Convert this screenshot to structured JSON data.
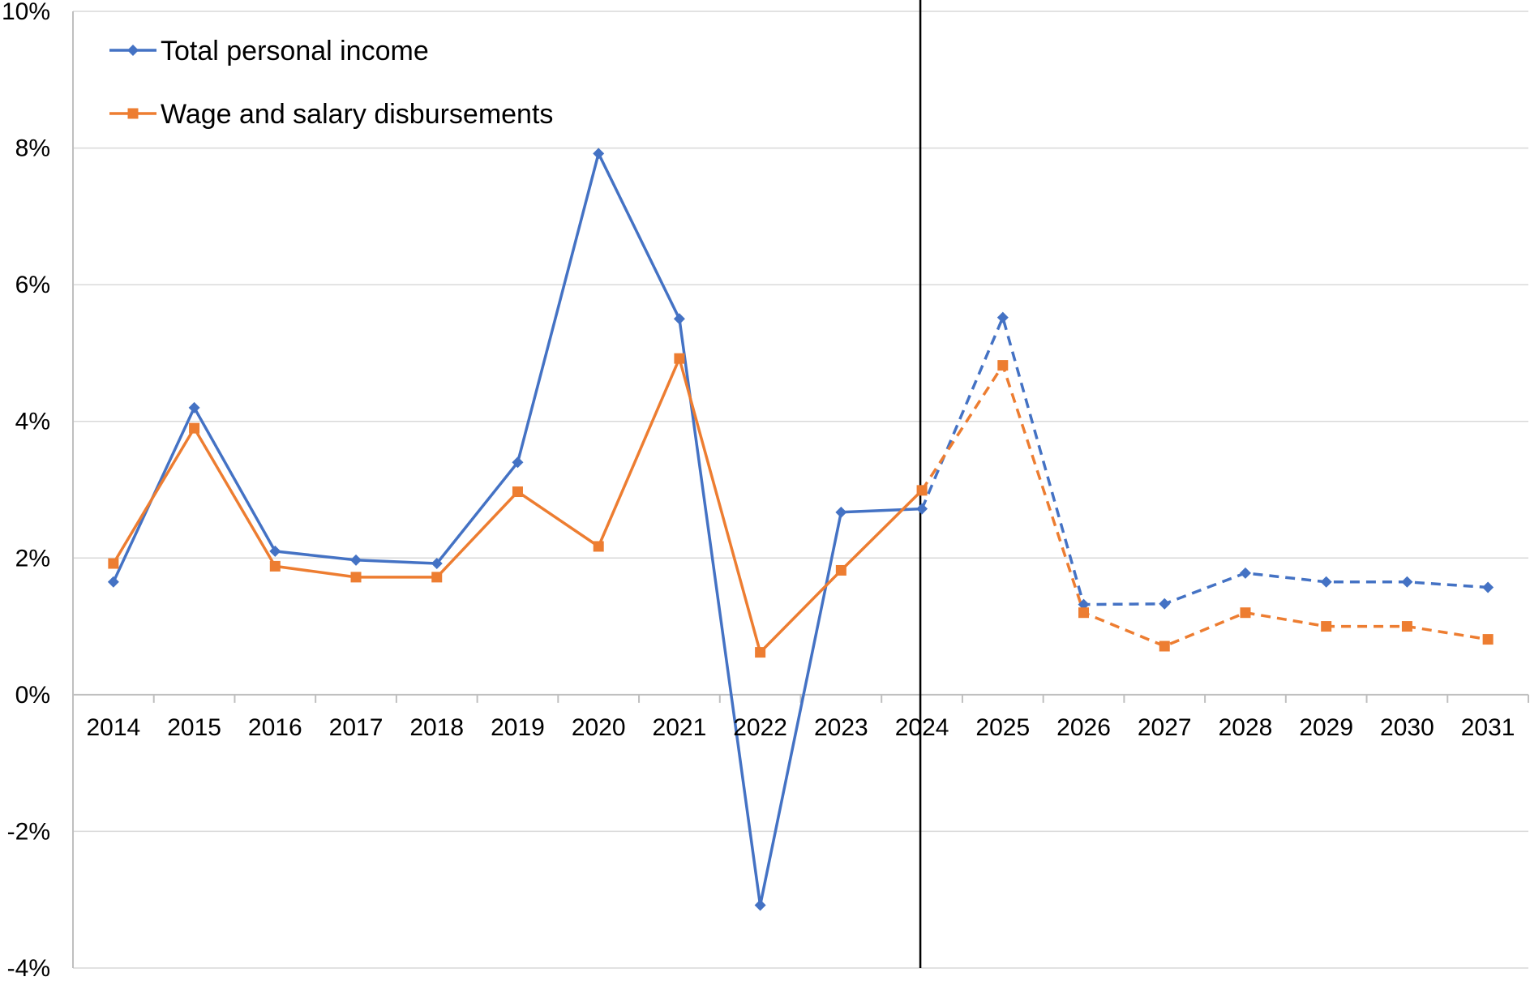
{
  "chart_data": {
    "type": "line",
    "title": "",
    "xlabel": "",
    "ylabel": "",
    "categories": [
      "2014",
      "2015",
      "2016",
      "2017",
      "2018",
      "2019",
      "2020",
      "2021",
      "2022",
      "2023",
      "2024",
      "2025",
      "2026",
      "2027",
      "2028",
      "2029",
      "2030",
      "2031"
    ],
    "y_ticks": [
      "-4%",
      "-2%",
      "0%",
      "2%",
      "4%",
      "6%",
      "8%",
      "10%"
    ],
    "ylim": [
      -4,
      10
    ],
    "y_unit": "%",
    "grid": "horizontal",
    "legend_position": "top-left",
    "divider_at": "2024",
    "series": [
      {
        "name": "Total personal income",
        "color": "#4472C4",
        "marker": "diamond",
        "values": [
          1.65,
          4.2,
          2.1,
          1.97,
          1.92,
          3.4,
          7.92,
          5.5,
          -3.08,
          2.67,
          2.72,
          5.52,
          1.32,
          1.33,
          1.78,
          1.65,
          1.65,
          1.57
        ],
        "solid_through": "2024",
        "dashed_from": "2024"
      },
      {
        "name": "Wage and salary disbursements",
        "color": "#ED7D31",
        "marker": "square",
        "values": [
          1.92,
          3.9,
          1.88,
          1.72,
          1.72,
          2.97,
          2.17,
          4.92,
          0.62,
          1.82,
          2.99,
          4.82,
          1.2,
          0.71,
          1.2,
          1.0,
          1.0,
          0.81
        ],
        "solid_through": "2024",
        "dashed_from": "2024"
      }
    ]
  }
}
